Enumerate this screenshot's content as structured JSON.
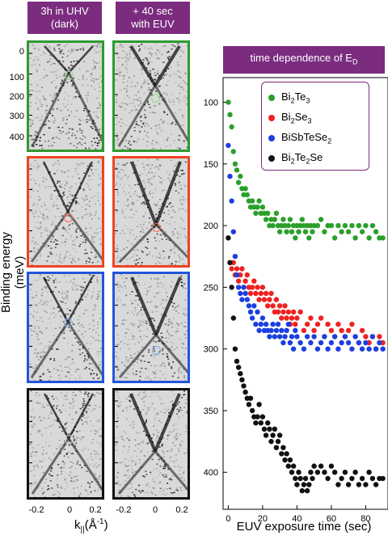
{
  "badges": {
    "dark": {
      "line1": "3h in UHV",
      "line2": "(dark)"
    },
    "euv": {
      "line1": "+ 40 sec",
      "line2": "with EUV"
    },
    "title": "time dependence of E",
    "title_sub": "D"
  },
  "left_axes": {
    "ylabel": "Binding energy (meV)",
    "yticks_top": [
      "0",
      "100",
      "200",
      "300",
      "400"
    ],
    "xlabel_main": "k",
    "xlabel_sub": "||",
    "xlabel_unit": "(Å",
    "xlabel_exp": "-1",
    "xlabel_close": ")",
    "xticks": [
      "-0.2",
      "0",
      "0.2"
    ]
  },
  "panel_colors": [
    "#2e9a2e",
    "#ee4422",
    "#2255dd",
    "#111111"
  ],
  "circle_colors": [
    "#8be08b",
    "#ff6a55",
    "#7ea8e8",
    "#cccccc"
  ],
  "chart_data": {
    "type": "scatter",
    "title": "time dependence of E_D",
    "xlabel": "EUV exposure time (sec)",
    "ylabel": "",
    "xlim": [
      -3,
      93
    ],
    "ylim": [
      430,
      80
    ],
    "xticks": [
      0,
      20,
      40,
      60,
      80
    ],
    "yticks": [
      100,
      150,
      200,
      250,
      300,
      350,
      400
    ],
    "y_inverted": true,
    "legend_position": "top-right",
    "series": [
      {
        "name": "Bi2Te3",
        "color": "#2aa02a",
        "x": [
          0,
          1,
          2,
          3,
          4,
          5,
          6,
          7,
          8,
          9,
          10,
          11,
          12,
          13,
          14,
          15,
          16,
          17,
          18,
          19,
          20,
          21,
          22,
          23,
          24,
          25,
          26,
          27,
          28,
          29,
          30,
          31,
          32,
          33,
          34,
          35,
          36,
          37,
          38,
          39,
          40,
          41,
          42,
          43,
          44,
          45,
          46,
          47,
          48,
          49,
          50,
          52,
          54,
          56,
          58,
          60,
          62,
          64,
          66,
          68,
          70,
          72,
          74,
          76,
          78,
          80,
          82,
          84,
          86,
          88,
          90
        ],
        "y": [
          100,
          110,
          120,
          140,
          150,
          155,
          165,
          160,
          170,
          175,
          170,
          175,
          180,
          185,
          180,
          185,
          190,
          185,
          180,
          190,
          185,
          190,
          195,
          190,
          200,
          195,
          200,
          195,
          190,
          200,
          205,
          200,
          195,
          200,
          205,
          200,
          195,
          205,
          200,
          210,
          200,
          205,
          200,
          195,
          200,
          205,
          200,
          210,
          200,
          205,
          200,
          200,
          195,
          205,
          200,
          200,
          210,
          200,
          205,
          200,
          205,
          200,
          210,
          200,
          205,
          200,
          210,
          200,
          205,
          210,
          210
        ]
      },
      {
        "name": "Bi2Se3",
        "color": "#ee2222",
        "x": [
          1,
          2,
          3,
          4,
          5,
          6,
          7,
          8,
          9,
          10,
          11,
          12,
          13,
          14,
          15,
          16,
          17,
          18,
          19,
          20,
          21,
          22,
          23,
          24,
          25,
          26,
          27,
          28,
          29,
          30,
          31,
          32,
          33,
          34,
          35,
          36,
          37,
          38,
          39,
          40,
          42,
          44,
          46,
          48,
          50,
          52,
          54,
          56,
          58,
          60,
          62,
          64,
          66,
          68,
          70,
          72,
          74,
          76,
          78,
          80,
          82,
          84,
          86,
          88,
          90
        ],
        "y": [
          230,
          235,
          230,
          240,
          235,
          245,
          240,
          235,
          250,
          245,
          240,
          250,
          255,
          250,
          245,
          255,
          250,
          260,
          255,
          250,
          260,
          255,
          265,
          260,
          255,
          265,
          270,
          260,
          270,
          265,
          275,
          270,
          265,
          275,
          270,
          280,
          275,
          270,
          280,
          275,
          270,
          285,
          280,
          275,
          285,
          280,
          275,
          290,
          280,
          285,
          290,
          280,
          285,
          290,
          285,
          280,
          290,
          295,
          285,
          290,
          295,
          290,
          300,
          290,
          295
        ]
      },
      {
        "name": "BiSbTeSe2",
        "color": "#1c3fe0",
        "x": [
          0,
          1,
          2,
          3,
          4,
          5,
          6,
          7,
          8,
          9,
          10,
          11,
          12,
          13,
          14,
          15,
          16,
          17,
          18,
          19,
          20,
          21,
          22,
          23,
          24,
          25,
          26,
          27,
          28,
          29,
          30,
          31,
          32,
          33,
          34,
          35,
          36,
          37,
          38,
          39,
          40,
          42,
          44,
          46,
          48,
          50,
          52,
          54,
          56,
          58,
          60,
          62,
          64,
          66,
          68,
          70,
          72,
          74,
          76,
          78,
          80,
          82,
          84,
          86,
          88,
          90
        ],
        "y": [
          135,
          160,
          180,
          205,
          225,
          240,
          250,
          255,
          260,
          250,
          255,
          260,
          265,
          270,
          275,
          265,
          280,
          270,
          285,
          280,
          275,
          285,
          280,
          285,
          290,
          285,
          280,
          290,
          285,
          280,
          290,
          285,
          295,
          290,
          285,
          280,
          295,
          290,
          300,
          285,
          290,
          295,
          300,
          290,
          295,
          290,
          300,
          295,
          290,
          300,
          295,
          290,
          300,
          295,
          290,
          295,
          300,
          290,
          295,
          300,
          295,
          300,
          290,
          300,
          295,
          300
        ]
      },
      {
        "name": "Bi2Te2Se",
        "color": "#111111",
        "x": [
          0,
          1,
          2,
          3,
          4,
          5,
          6,
          7,
          8,
          9,
          10,
          11,
          12,
          13,
          14,
          15,
          16,
          17,
          18,
          19,
          20,
          21,
          22,
          23,
          24,
          25,
          26,
          27,
          28,
          29,
          30,
          31,
          32,
          33,
          34,
          35,
          36,
          37,
          38,
          39,
          40,
          41,
          42,
          43,
          44,
          45,
          46,
          47,
          48,
          49,
          50,
          52,
          54,
          56,
          58,
          60,
          62,
          64,
          66,
          68,
          70,
          72,
          74,
          76,
          78,
          80,
          82,
          84,
          86,
          88,
          90
        ],
        "y": [
          210,
          230,
          250,
          275,
          300,
          310,
          315,
          320,
          325,
          330,
          335,
          340,
          345,
          340,
          350,
          355,
          360,
          355,
          345,
          360,
          355,
          365,
          370,
          360,
          365,
          375,
          370,
          365,
          380,
          375,
          370,
          385,
          380,
          390,
          385,
          395,
          390,
          400,
          395,
          405,
          410,
          400,
          405,
          415,
          410,
          405,
          415,
          410,
          400,
          405,
          395,
          400,
          395,
          400,
          405,
          395,
          400,
          410,
          405,
          400,
          410,
          405,
          400,
          410,
          405,
          410,
          400,
          405,
          410,
          405,
          405
        ]
      }
    ]
  },
  "legend": [
    {
      "sym": "Bi",
      "sub1": "2",
      "mid": "Te",
      "sub2": "3",
      "end": ""
    },
    {
      "sym": "Bi",
      "sub1": "2",
      "mid": "Se",
      "sub2": "3",
      "end": ""
    },
    {
      "sym": "BiSbTeSe",
      "sub1": "2",
      "mid": "",
      "sub2": "",
      "end": ""
    },
    {
      "sym": "Bi",
      "sub1": "2",
      "mid": "Te",
      "sub2": "2",
      "end": "Se"
    }
  ],
  "xlabel_right": "EUV exposure time (sec)"
}
